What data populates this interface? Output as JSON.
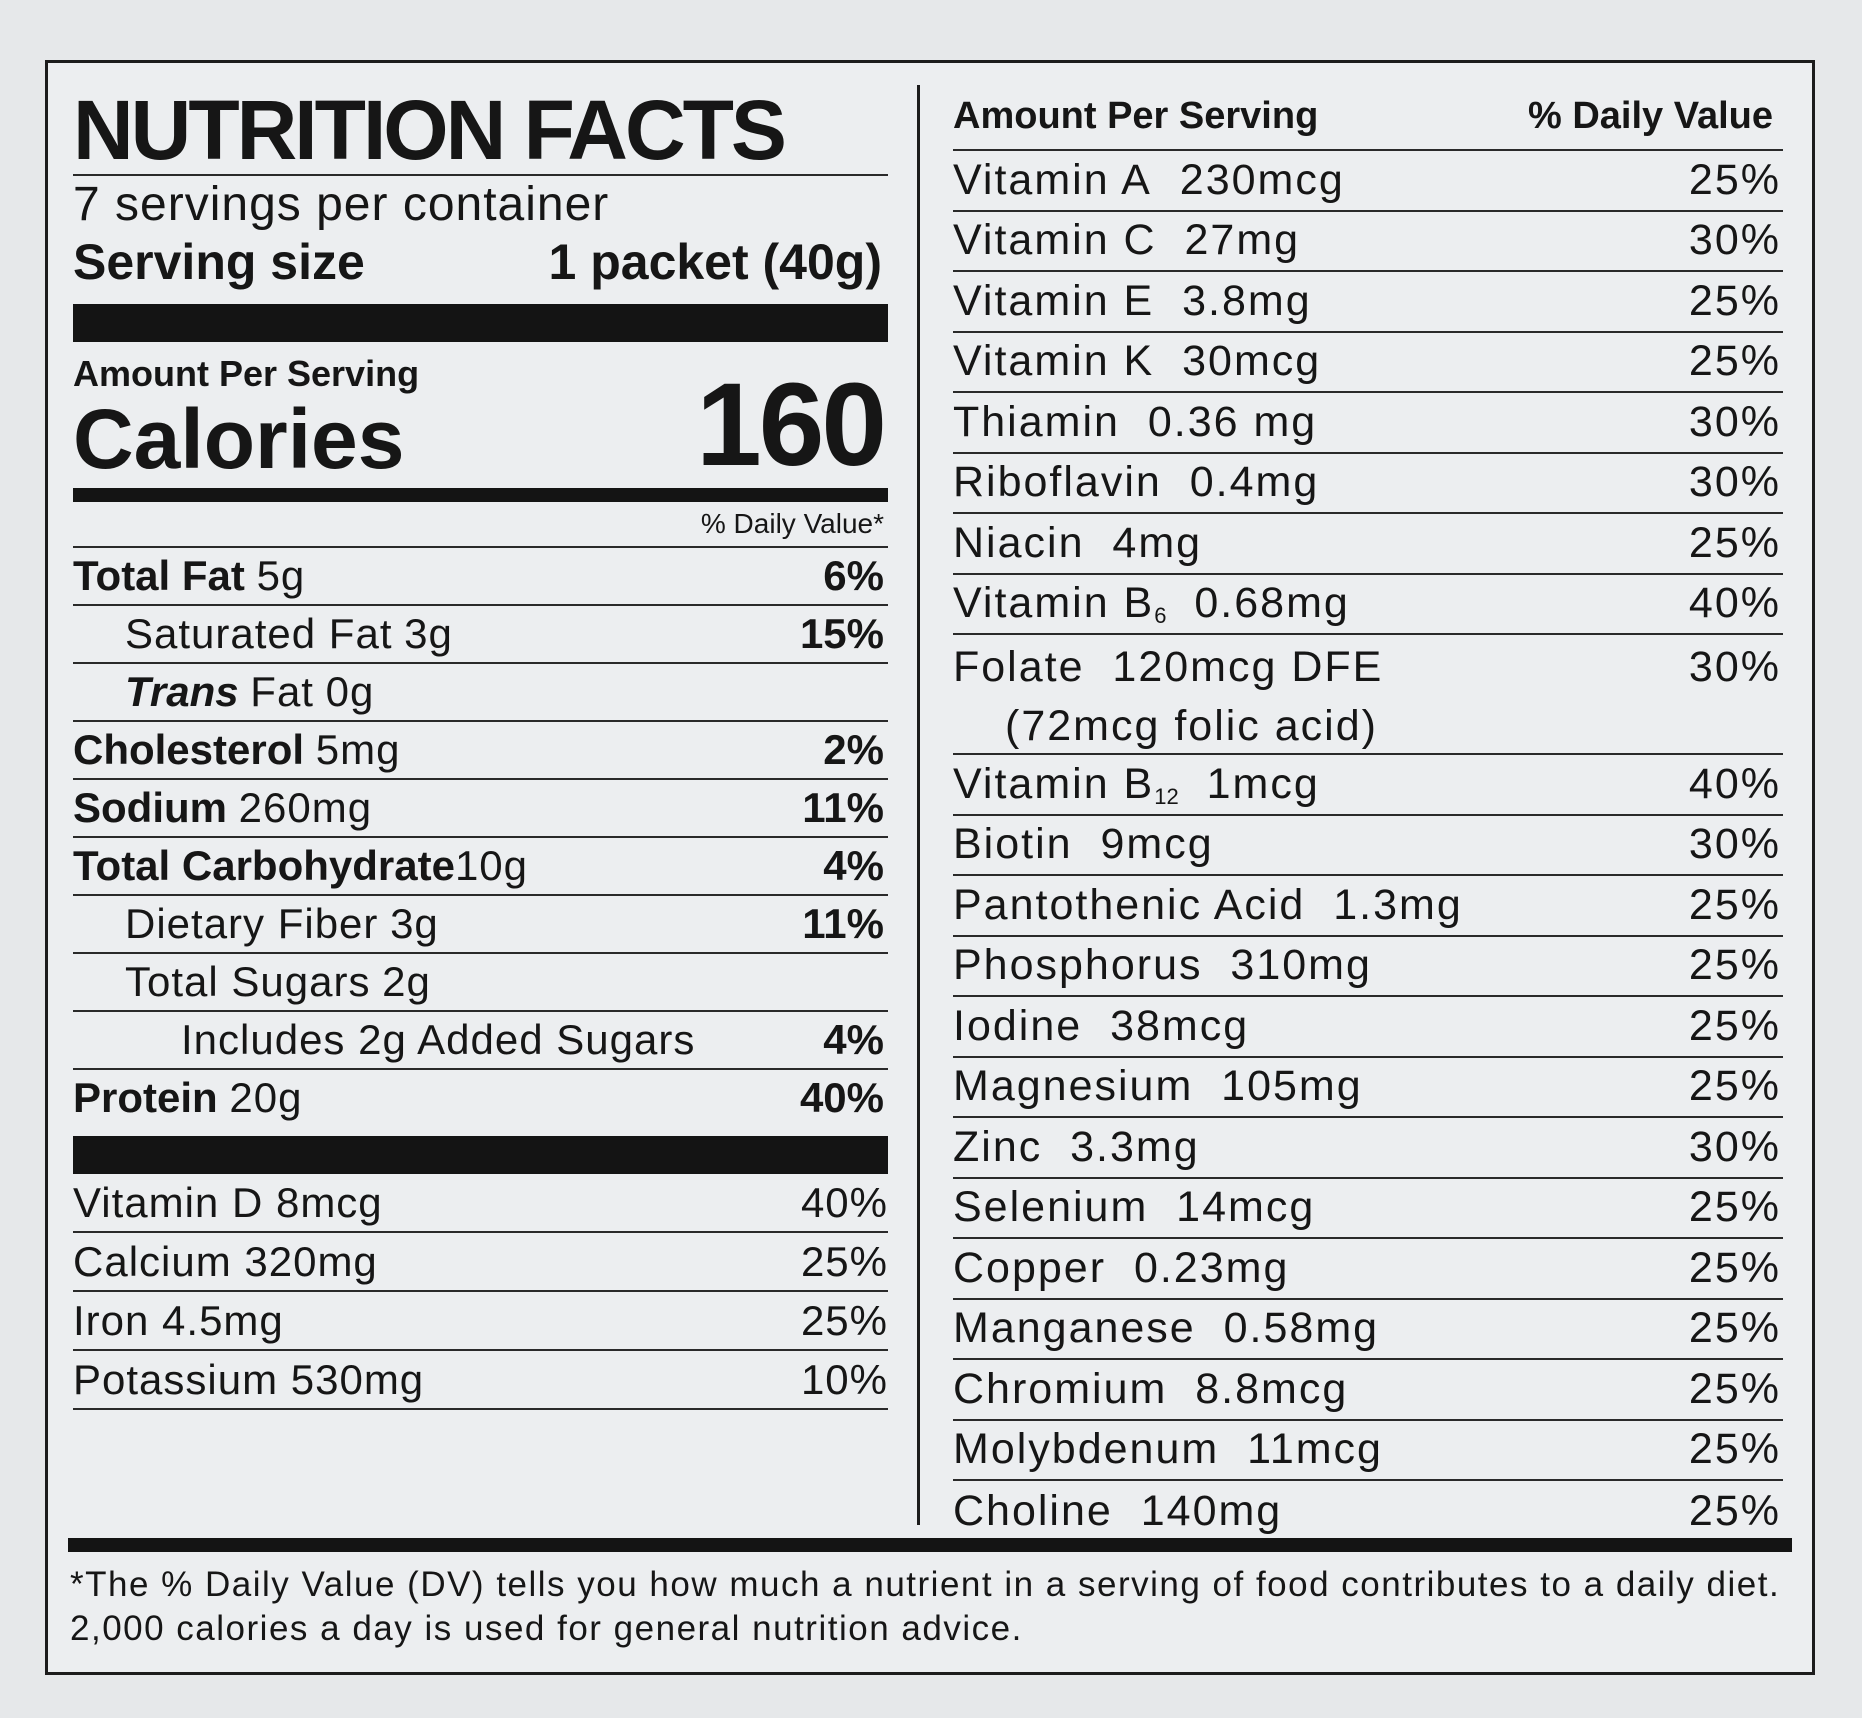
{
  "title": "NUTRITION FACTS",
  "servings_per_container": "7 servings per container",
  "serving_size_label": "Serving size",
  "serving_size_value": "1 packet (40g)",
  "amount_per_serving": "Amount Per Serving",
  "calories_label": "Calories",
  "calories_value": "160",
  "daily_value_header": "% Daily Value*",
  "nutrients": [
    {
      "name": "Total Fat",
      "amount": "5g",
      "dv": "6%"
    },
    {
      "name": "Saturated Fat",
      "amount": "3g",
      "dv": "15%"
    },
    {
      "prefix": "Trans",
      "name": "Fat",
      "amount": "0g",
      "dv": ""
    },
    {
      "name": "Cholesterol",
      "amount": "5mg",
      "dv": "2%"
    },
    {
      "name": "Sodium",
      "amount": "260mg",
      "dv": "11%"
    },
    {
      "name": "Total Carbohydrate",
      "amount": "10g",
      "dv": "4%"
    },
    {
      "name": "Dietary Fiber",
      "amount": "3g",
      "dv": "11%"
    },
    {
      "name": "Total Sugars",
      "amount": "2g",
      "dv": ""
    },
    {
      "name": "Includes 2g Added Sugars",
      "amount": "",
      "dv": "4%"
    },
    {
      "name": "Protein",
      "amount": "20g",
      "dv": "40%"
    }
  ],
  "minerals_left": [
    {
      "label": "Vitamin D 8mcg",
      "dv": "40%"
    },
    {
      "label": "Calcium 320mg",
      "dv": "25%"
    },
    {
      "label": "Iron 4.5mg",
      "dv": "25%"
    },
    {
      "label": "Potassium 530mg",
      "dv": "10%"
    }
  ],
  "right_header": {
    "left": "Amount Per Serving",
    "right": "% Daily Value"
  },
  "vitamins": [
    {
      "name": "Vitamin A",
      "amount": "230mcg",
      "dv": "25%"
    },
    {
      "name": "Vitamin C",
      "amount": "27mg",
      "dv": "30%"
    },
    {
      "name": "Vitamin E",
      "amount": "3.8mg",
      "dv": "25%"
    },
    {
      "name": "Vitamin K",
      "amount": "30mcg",
      "dv": "25%"
    },
    {
      "name": "Thiamin",
      "amount": "0.36 mg",
      "dv": "30%"
    },
    {
      "name": "Riboflavin",
      "amount": "0.4mg",
      "dv": "30%"
    },
    {
      "name": "Niacin",
      "amount": "4mg",
      "dv": "25%"
    },
    {
      "name": "Vitamin B",
      "sub": "6",
      "amount": "0.68mg",
      "dv": "40%"
    },
    {
      "name": "Folate",
      "amount": "120mcg DFE",
      "note": "(72mcg folic acid)",
      "dv": "30%"
    },
    {
      "name": "Vitamin B",
      "sub": "12",
      "amount": "1mcg",
      "dv": "40%"
    },
    {
      "name": "Biotin",
      "amount": "9mcg",
      "dv": "30%"
    },
    {
      "name": "Pantothenic Acid",
      "amount": "1.3mg",
      "dv": "25%"
    },
    {
      "name": "Phosphorus",
      "amount": "310mg",
      "dv": "25%"
    },
    {
      "name": "Iodine",
      "amount": "38mcg",
      "dv": "25%"
    },
    {
      "name": "Magnesium",
      "amount": "105mg",
      "dv": "25%"
    },
    {
      "name": "Zinc",
      "amount": "3.3mg",
      "dv": "30%"
    },
    {
      "name": "Selenium",
      "amount": "14mcg",
      "dv": "25%"
    },
    {
      "name": "Copper",
      "amount": "0.23mg",
      "dv": "25%"
    },
    {
      "name": "Manganese",
      "amount": "0.58mg",
      "dv": "25%"
    },
    {
      "name": "Chromium",
      "amount": "8.8mcg",
      "dv": "25%"
    },
    {
      "name": "Molybdenum",
      "amount": "11mcg",
      "dv": "25%"
    },
    {
      "name": "Choline",
      "amount": "140mg",
      "dv": "25%"
    }
  ],
  "footnote": "*The % Daily Value (DV) tells you how much a nutrient in a serving of food contributes to a daily diet. 2,000 calories a day is used for general nutrition advice."
}
